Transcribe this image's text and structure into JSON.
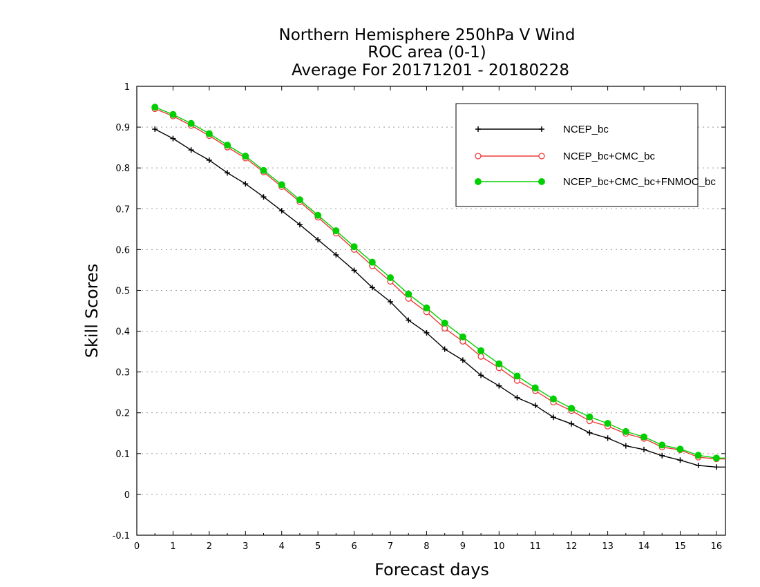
{
  "chart_data": {
    "type": "line",
    "title_lines": [
      "Northern Hemisphere 250hPa V Wind",
      "ROC area (0-1)",
      "Average For 20171201 - 20180228"
    ],
    "xlabel": "Forecast days",
    "ylabel": "Skill Scores",
    "xlim": [
      0,
      16.25
    ],
    "ylim": [
      -0.1,
      1
    ],
    "xticks": [
      0,
      1,
      2,
      3,
      4,
      5,
      6,
      7,
      8,
      9,
      10,
      11,
      12,
      13,
      14,
      15,
      16
    ],
    "xtick_labels": [
      "0",
      "1",
      "2",
      "3",
      "4",
      "5",
      "6",
      "7",
      "8",
      "9",
      "10",
      "11",
      "12",
      "13",
      "14",
      "15",
      "16"
    ],
    "yticks": [
      -0.1,
      0,
      0.1,
      0.2,
      0.3,
      0.4,
      0.5,
      0.6,
      0.7,
      0.8,
      0.9,
      1
    ],
    "ytick_labels": [
      "-0.1",
      "0",
      "0.1",
      "0.2",
      "0.3",
      "0.4",
      "0.5",
      "0.6",
      "0.7",
      "0.8",
      "0.9",
      "1"
    ],
    "grid": "horizontal dotted",
    "legend_position": "top-right",
    "x": [
      0.5,
      1,
      1.5,
      2,
      2.5,
      3,
      3.5,
      4,
      4.5,
      5,
      5.5,
      6,
      6.5,
      7,
      7.5,
      8,
      8.5,
      9,
      9.5,
      10,
      10.5,
      11,
      11.5,
      12,
      12.5,
      13,
      13.5,
      14,
      14.5,
      15,
      15.5,
      16,
      16.25
    ],
    "series": [
      {
        "name": "NCEP_bc",
        "color": "#000000",
        "marker": "plus",
        "values": [
          0.895,
          0.872,
          0.844,
          0.819,
          0.788,
          0.761,
          0.729,
          0.695,
          0.661,
          0.624,
          0.587,
          0.549,
          0.507,
          0.472,
          0.427,
          0.396,
          0.356,
          0.329,
          0.292,
          0.266,
          0.237,
          0.218,
          0.189,
          0.173,
          0.151,
          0.138,
          0.119,
          0.11,
          0.095,
          0.084,
          0.071,
          0.067,
          0.067
        ]
      },
      {
        "name": "NCEP_bc+CMC_bc",
        "color": "#ee3a3a",
        "marker": "open-circle",
        "values": [
          0.945,
          0.927,
          0.904,
          0.879,
          0.851,
          0.824,
          0.79,
          0.754,
          0.717,
          0.679,
          0.64,
          0.6,
          0.56,
          0.522,
          0.48,
          0.447,
          0.407,
          0.375,
          0.338,
          0.31,
          0.279,
          0.254,
          0.226,
          0.205,
          0.18,
          0.167,
          0.149,
          0.137,
          0.116,
          0.109,
          0.091,
          0.087,
          0.087
        ]
      },
      {
        "name": "NCEP_bc+CMC_bc+FNMOC_bc",
        "color": "#00d000",
        "marker": "filled-circle",
        "values": [
          0.949,
          0.931,
          0.909,
          0.884,
          0.856,
          0.829,
          0.794,
          0.759,
          0.722,
          0.684,
          0.646,
          0.607,
          0.569,
          0.531,
          0.491,
          0.457,
          0.42,
          0.386,
          0.352,
          0.32,
          0.29,
          0.261,
          0.234,
          0.211,
          0.19,
          0.174,
          0.154,
          0.141,
          0.121,
          0.111,
          0.096,
          0.089,
          0.089
        ]
      }
    ]
  }
}
